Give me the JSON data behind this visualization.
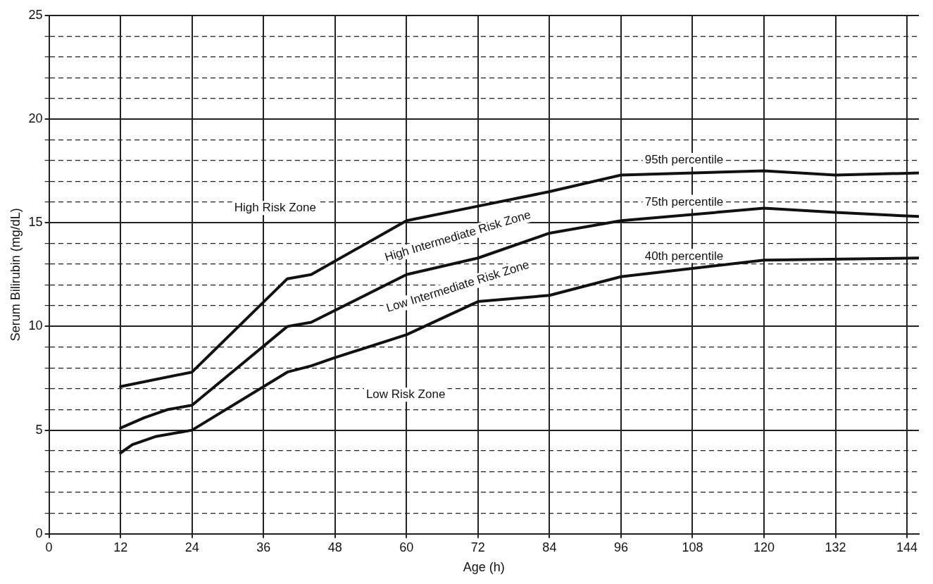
{
  "chart_data": {
    "type": "line",
    "xlabel": "Age (h)",
    "ylabel": "Serum Bilirubin (mg/dL)",
    "xlim": [
      0,
      146
    ],
    "xticks": [
      0,
      12,
      24,
      36,
      48,
      60,
      72,
      84,
      96,
      108,
      120,
      132,
      144
    ],
    "ylim": [
      0,
      25
    ],
    "yticks": [
      0,
      {
        "value": 1,
        "label": null
      },
      {
        "value": 2,
        "label": null
      },
      {
        "value": 3,
        "label": null
      },
      {
        "value": 4,
        "label": null
      },
      5,
      {
        "value": 6,
        "label": null
      },
      {
        "value": 7,
        "label": null
      },
      {
        "value": 8,
        "label": null
      },
      {
        "value": 9,
        "label": null
      },
      10,
      {
        "value": 11,
        "label": null
      },
      {
        "value": 12,
        "label": null
      },
      {
        "value": 13,
        "label": null
      },
      {
        "value": 14,
        "label": null
      },
      15,
      {
        "value": 16,
        "label": null
      },
      {
        "value": 17,
        "label": null
      },
      {
        "value": 18,
        "label": null
      },
      {
        "value": 19,
        "label": null
      },
      20,
      {
        "value": 21,
        "label": null
      },
      {
        "value": 22,
        "label": null
      },
      {
        "value": 23,
        "label": null
      },
      {
        "value": 24,
        "label": null
      },
      25
    ],
    "grid": true,
    "legend": false,
    "marker": "none",
    "line_style": "solid",
    "series": [
      {
        "name": "95th percentile",
        "color": "#111111",
        "x": [
          12,
          24,
          40,
          44,
          60,
          72,
          84,
          96,
          120,
          132,
          146
        ],
        "values": [
          7.1,
          7.8,
          12.3,
          12.5,
          15.1,
          15.8,
          16.5,
          17.3,
          17.5,
          17.3,
          17.4
        ]
      },
      {
        "name": "75th percentile",
        "color": "#111111",
        "x": [
          12,
          16,
          20,
          24,
          40,
          44,
          60,
          72,
          84,
          96,
          120,
          132,
          146
        ],
        "values": [
          5.1,
          5.6,
          6.0,
          6.2,
          10.0,
          10.2,
          12.5,
          13.3,
          14.5,
          15.1,
          15.7,
          15.5,
          15.3
        ]
      },
      {
        "name": "40th percentile",
        "color": "#111111",
        "x": [
          12,
          14,
          18,
          24,
          40,
          44,
          48,
          60,
          72,
          84,
          96,
          108,
          120,
          146
        ],
        "values": [
          3.9,
          4.3,
          4.7,
          5.0,
          7.8,
          8.1,
          8.5,
          9.6,
          11.2,
          11.5,
          12.4,
          12.8,
          13.2,
          13.3
        ]
      }
    ],
    "annotations": [
      "High Risk Zone",
      "High Intermediate Risk Zone",
      "Low Intermediate Risk Zone",
      "Low Risk Zone"
    ]
  }
}
